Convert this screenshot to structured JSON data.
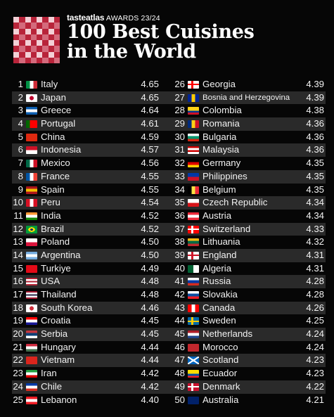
{
  "header": {
    "brand_name": "tasteatlas",
    "brand_award": "AWARDS 23/24",
    "title_line1": "100 Best Cuisines",
    "title_line2": "in the World",
    "logo_colors": [
      "#b8243a",
      "#f3d0d6"
    ]
  },
  "rankings": [
    {
      "rank": "1",
      "name": "Italy",
      "score": "4.65",
      "flag": [
        "#009246",
        "#ffffff",
        "#ce2b37"
      ],
      "flag_dir": "v"
    },
    {
      "rank": "2",
      "name": "Japan",
      "score": "4.65",
      "flag": [
        "#ffffff",
        "#bc002d",
        "#ffffff"
      ],
      "flag_dir": "dot"
    },
    {
      "rank": "3",
      "name": "Greece",
      "score": "4.64",
      "flag": [
        "#0d5eaf",
        "#ffffff",
        "#0d5eaf"
      ],
      "flag_dir": "h"
    },
    {
      "rank": "4",
      "name": "Portugal",
      "score": "4.61",
      "flag": [
        "#006600",
        "#ff0000",
        "#ff0000"
      ],
      "flag_dir": "v"
    },
    {
      "rank": "5",
      "name": "China",
      "score": "4.59",
      "flag": [
        "#de2910",
        "#de2910",
        "#de2910"
      ],
      "flag_dir": "h"
    },
    {
      "rank": "6",
      "name": "Indonesia",
      "score": "4.57",
      "flag": [
        "#ce1126",
        "#ffffff"
      ],
      "flag_dir": "h"
    },
    {
      "rank": "7",
      "name": "Mexico",
      "score": "4.56",
      "flag": [
        "#006847",
        "#ffffff",
        "#ce1126"
      ],
      "flag_dir": "v"
    },
    {
      "rank": "8",
      "name": "France",
      "score": "4.55",
      "flag": [
        "#0055a4",
        "#ffffff",
        "#ef4135"
      ],
      "flag_dir": "v"
    },
    {
      "rank": "9",
      "name": "Spain",
      "score": "4.55",
      "flag": [
        "#aa151b",
        "#f1bf00",
        "#aa151b"
      ],
      "flag_dir": "h"
    },
    {
      "rank": "10",
      "name": "Peru",
      "score": "4.54",
      "flag": [
        "#d91023",
        "#ffffff",
        "#d91023"
      ],
      "flag_dir": "v"
    },
    {
      "rank": "11",
      "name": "India",
      "score": "4.52",
      "flag": [
        "#ff9933",
        "#ffffff",
        "#138808"
      ],
      "flag_dir": "h"
    },
    {
      "rank": "12",
      "name": "Brazil",
      "score": "4.52",
      "flag": [
        "#009c3b",
        "#ffdf00",
        "#009c3b"
      ],
      "flag_dir": "diamond"
    },
    {
      "rank": "13",
      "name": "Poland",
      "score": "4.50",
      "flag": [
        "#ffffff",
        "#dc143c"
      ],
      "flag_dir": "h"
    },
    {
      "rank": "14",
      "name": "Argentina",
      "score": "4.50",
      "flag": [
        "#74acdf",
        "#ffffff",
        "#74acdf"
      ],
      "flag_dir": "h"
    },
    {
      "rank": "15",
      "name": "Turkiye",
      "score": "4.49",
      "flag": [
        "#e30a17",
        "#e30a17"
      ],
      "flag_dir": "h"
    },
    {
      "rank": "16",
      "name": "USA",
      "score": "4.48",
      "flag": [
        "#b22234",
        "#ffffff",
        "#b22234",
        "#ffffff",
        "#b22234"
      ],
      "flag_dir": "h"
    },
    {
      "rank": "17",
      "name": "Thailand",
      "score": "4.48",
      "flag": [
        "#a51931",
        "#f4f5f8",
        "#2d2a4a",
        "#f4f5f8",
        "#a51931"
      ],
      "flag_dir": "h"
    },
    {
      "rank": "18",
      "name": "South Korea",
      "score": "4.46",
      "flag": [
        "#ffffff",
        "#cd2e3a",
        "#ffffff"
      ],
      "flag_dir": "dot"
    },
    {
      "rank": "19",
      "name": "Croatia",
      "score": "4.45",
      "flag": [
        "#ff0000",
        "#ffffff",
        "#171796"
      ],
      "flag_dir": "h"
    },
    {
      "rank": "20",
      "name": "Serbia",
      "score": "4.45",
      "flag": [
        "#c6363c",
        "#0c4076",
        "#ffffff"
      ],
      "flag_dir": "h"
    },
    {
      "rank": "21",
      "name": "Hungary",
      "score": "4.44",
      "flag": [
        "#cd2a3e",
        "#ffffff",
        "#436f4d"
      ],
      "flag_dir": "h"
    },
    {
      "rank": "22",
      "name": "Vietnam",
      "score": "4.44",
      "flag": [
        "#da251d",
        "#da251d"
      ],
      "flag_dir": "h"
    },
    {
      "rank": "23",
      "name": "Iran",
      "score": "4.42",
      "flag": [
        "#239f40",
        "#ffffff",
        "#da0000"
      ],
      "flag_dir": "h"
    },
    {
      "rank": "24",
      "name": "Chile",
      "score": "4.42",
      "flag": [
        "#0039a6",
        "#ffffff",
        "#d52b1e"
      ],
      "flag_dir": "h"
    },
    {
      "rank": "25",
      "name": "Lebanon",
      "score": "4.40",
      "flag": [
        "#ed1c24",
        "#ffffff",
        "#ed1c24"
      ],
      "flag_dir": "h"
    },
    {
      "rank": "26",
      "name": "Georgia",
      "score": "4.39",
      "flag": [
        "#ffffff",
        "#ff0000",
        "#ffffff"
      ],
      "flag_dir": "cross"
    },
    {
      "rank": "27",
      "name": "Bosnia and Herzegovina",
      "score": "4.39",
      "flag": [
        "#002395",
        "#fecb00",
        "#002395"
      ],
      "flag_dir": "v"
    },
    {
      "rank": "28",
      "name": "Colombia",
      "score": "4.38",
      "flag": [
        "#fcd116",
        "#fcd116",
        "#003893",
        "#ce1126"
      ],
      "flag_dir": "h"
    },
    {
      "rank": "29",
      "name": "Romania",
      "score": "4.36",
      "flag": [
        "#002b7f",
        "#fcd116",
        "#ce1126"
      ],
      "flag_dir": "v"
    },
    {
      "rank": "30",
      "name": "Bulgaria",
      "score": "4.36",
      "flag": [
        "#ffffff",
        "#00966e",
        "#d62612"
      ],
      "flag_dir": "h"
    },
    {
      "rank": "31",
      "name": "Malaysia",
      "score": "4.36",
      "flag": [
        "#cc0001",
        "#ffffff",
        "#cc0001",
        "#ffffff"
      ],
      "flag_dir": "h"
    },
    {
      "rank": "32",
      "name": "Germany",
      "score": "4.35",
      "flag": [
        "#000000",
        "#dd0000",
        "#ffce00"
      ],
      "flag_dir": "h"
    },
    {
      "rank": "33",
      "name": "Philippines",
      "score": "4.35",
      "flag": [
        "#0038a8",
        "#ce1126"
      ],
      "flag_dir": "h"
    },
    {
      "rank": "34",
      "name": "Belgium",
      "score": "4.35",
      "flag": [
        "#000000",
        "#fae042",
        "#ed2939"
      ],
      "flag_dir": "v"
    },
    {
      "rank": "35",
      "name": "Czech Republic",
      "score": "4.34",
      "flag": [
        "#ffffff",
        "#d7141a"
      ],
      "flag_dir": "h"
    },
    {
      "rank": "36",
      "name": "Austria",
      "score": "4.34",
      "flag": [
        "#ed2939",
        "#ffffff",
        "#ed2939"
      ],
      "flag_dir": "h"
    },
    {
      "rank": "37",
      "name": "Switzerland",
      "score": "4.33",
      "flag": [
        "#ff0000",
        "#ffffff",
        "#ff0000"
      ],
      "flag_dir": "cross"
    },
    {
      "rank": "38",
      "name": "Lithuania",
      "score": "4.32",
      "flag": [
        "#fdb913",
        "#006a44",
        "#c1272d"
      ],
      "flag_dir": "h"
    },
    {
      "rank": "39",
      "name": "England",
      "score": "4.31",
      "flag": [
        "#ffffff",
        "#ce1124",
        "#ffffff"
      ],
      "flag_dir": "cross"
    },
    {
      "rank": "40",
      "name": "Algeria",
      "score": "4.31",
      "flag": [
        "#006233",
        "#ffffff"
      ],
      "flag_dir": "v"
    },
    {
      "rank": "41",
      "name": "Russia",
      "score": "4.28",
      "flag": [
        "#ffffff",
        "#0039a6",
        "#d52b1e"
      ],
      "flag_dir": "h"
    },
    {
      "rank": "42",
      "name": "Slovakia",
      "score": "4.28",
      "flag": [
        "#ffffff",
        "#0b4ea2",
        "#ee1c25"
      ],
      "flag_dir": "h"
    },
    {
      "rank": "43",
      "name": "Canada",
      "score": "4.26",
      "flag": [
        "#ff0000",
        "#ffffff",
        "#ff0000"
      ],
      "flag_dir": "v"
    },
    {
      "rank": "44",
      "name": "Sweden",
      "score": "4.25",
      "flag": [
        "#006aa7",
        "#fecc00",
        "#006aa7"
      ],
      "flag_dir": "cross"
    },
    {
      "rank": "45",
      "name": "Netherlands",
      "score": "4.24",
      "flag": [
        "#ae1c28",
        "#ffffff",
        "#21468b"
      ],
      "flag_dir": "h"
    },
    {
      "rank": "46",
      "name": "Morocco",
      "score": "4.24",
      "flag": [
        "#c1272d",
        "#c1272d"
      ],
      "flag_dir": "h"
    },
    {
      "rank": "47",
      "name": "Scotland",
      "score": "4.23",
      "flag": [
        "#0065bd",
        "#ffffff",
        "#0065bd"
      ],
      "flag_dir": "xcross"
    },
    {
      "rank": "48",
      "name": "Ecuador",
      "score": "4.23",
      "flag": [
        "#ffdd00",
        "#ffdd00",
        "#034ea2",
        "#ed1c24"
      ],
      "flag_dir": "h"
    },
    {
      "rank": "49",
      "name": "Denmark",
      "score": "4.22",
      "flag": [
        "#c8102e",
        "#ffffff",
        "#c8102e"
      ],
      "flag_dir": "cross"
    },
    {
      "rank": "50",
      "name": "Australia",
      "score": "4.21",
      "flag": [
        "#012169",
        "#012169"
      ],
      "flag_dir": "h"
    }
  ]
}
